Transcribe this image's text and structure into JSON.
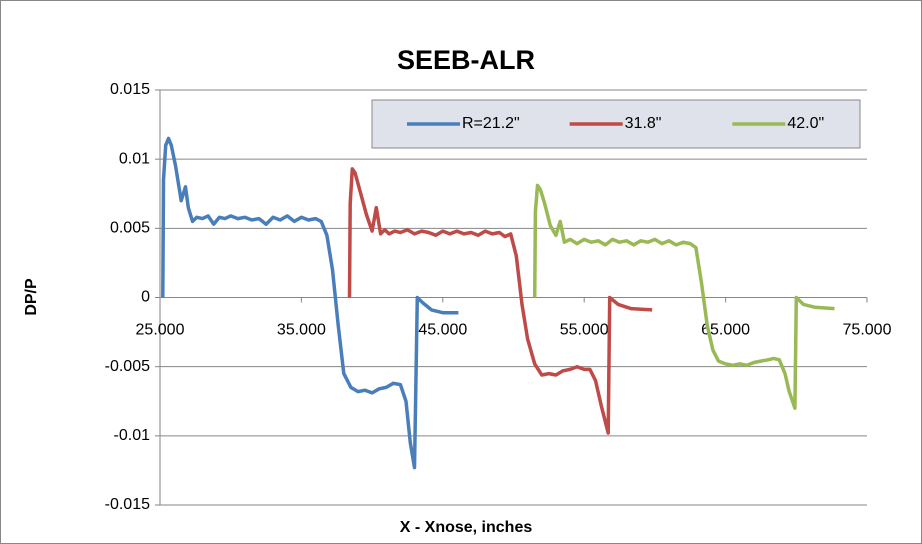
{
  "chart_data": {
    "type": "line",
    "title": "SEEB-ALR",
    "x_label": "X - Xnose, inches",
    "y_label": "DP/P",
    "xlim": [
      25,
      75
    ],
    "xticks": [
      {
        "value": 25,
        "label": "25.000"
      },
      {
        "value": 35,
        "label": "35.000"
      },
      {
        "value": 45,
        "label": "45.000"
      },
      {
        "value": 55,
        "label": "55.000"
      },
      {
        "value": 65,
        "label": "65.000"
      },
      {
        "value": 75,
        "label": "75.000"
      }
    ],
    "ylim": [
      -0.015,
      0.015
    ],
    "yticks": [
      0.015,
      0.01,
      0.005,
      0,
      -0.005,
      -0.01,
      -0.015
    ],
    "grid": true,
    "legend": "top-right",
    "series": [
      {
        "name": "R=21.2\"",
        "color": "#4a7ebb",
        "x": [
          25.2,
          25.25,
          25.4,
          25.6,
          25.8,
          26.1,
          26.5,
          26.8,
          27.0,
          27.3,
          27.6,
          28.0,
          28.4,
          28.8,
          29.2,
          29.6,
          30.0,
          30.5,
          31.0,
          31.5,
          32.0,
          32.5,
          33.0,
          33.5,
          34.0,
          34.5,
          35.0,
          35.5,
          36.0,
          36.4,
          36.8,
          37.2,
          37.6,
          38.0,
          38.5,
          39.0,
          39.5,
          40.0,
          40.5,
          41.0,
          41.5,
          42.0,
          42.4,
          42.7,
          43.0,
          43.2,
          43.6,
          44.2,
          45.0,
          46.1
        ],
        "values": [
          0,
          0.0085,
          0.011,
          0.0115,
          0.011,
          0.0095,
          0.007,
          0.008,
          0.0065,
          0.0055,
          0.0058,
          0.0057,
          0.0059,
          0.0053,
          0.0058,
          0.0057,
          0.0059,
          0.0057,
          0.0058,
          0.0056,
          0.0057,
          0.0053,
          0.0058,
          0.0056,
          0.0059,
          0.0055,
          0.0058,
          0.0056,
          0.0057,
          0.0055,
          0.0045,
          0.002,
          -0.002,
          -0.0055,
          -0.0065,
          -0.0068,
          -0.0067,
          -0.0069,
          -0.0066,
          -0.0065,
          -0.0062,
          -0.0063,
          -0.0075,
          -0.0105,
          -0.0123,
          0,
          -0.0004,
          -0.0009,
          -0.0011,
          -0.0011
        ]
      },
      {
        "name": "31.8\"",
        "color": "#be4b48",
        "x": [
          38.4,
          38.45,
          38.6,
          38.8,
          39.2,
          39.6,
          40.0,
          40.3,
          40.6,
          40.9,
          41.2,
          41.6,
          42.0,
          42.5,
          43,
          43.5,
          44,
          44.5,
          45,
          45.5,
          46,
          46.5,
          47,
          47.5,
          48,
          48.5,
          49,
          49.4,
          49.8,
          50.2,
          50.6,
          51.0,
          51.5,
          52,
          52.5,
          53,
          53.5,
          54,
          54.5,
          55,
          55.4,
          55.8,
          56.2,
          56.7,
          56.8,
          57.4,
          58.3,
          59.8
        ],
        "values": [
          0,
          0.0068,
          0.0093,
          0.009,
          0.0075,
          0.006,
          0.0048,
          0.0065,
          0.0046,
          0.0049,
          0.0046,
          0.0048,
          0.0047,
          0.0049,
          0.0046,
          0.0048,
          0.0047,
          0.0045,
          0.0048,
          0.0046,
          0.0048,
          0.0046,
          0.0047,
          0.0045,
          0.0048,
          0.0046,
          0.0047,
          0.0044,
          0.0046,
          0.003,
          -0.0005,
          -0.003,
          -0.0048,
          -0.0056,
          -0.0055,
          -0.0056,
          -0.0053,
          -0.0052,
          -0.005,
          -0.0052,
          -0.0052,
          -0.006,
          -0.0078,
          -0.0098,
          0,
          -0.0005,
          -0.0008,
          -0.0009
        ]
      },
      {
        "name": "42.0\"",
        "color": "#98b954",
        "x": [
          51.5,
          51.55,
          51.7,
          51.9,
          52.2,
          52.6,
          53.0,
          53.3,
          53.6,
          54.0,
          54.5,
          55,
          55.5,
          56,
          56.5,
          57,
          57.5,
          58,
          58.5,
          59,
          59.5,
          60,
          60.5,
          61,
          61.5,
          62,
          62.5,
          62.9,
          63.3,
          63.7,
          64.1,
          64.5,
          65,
          65.5,
          66,
          66.5,
          67,
          67.5,
          68,
          68.4,
          68.8,
          69.2,
          69.5,
          69.9,
          70.0,
          70.5,
          71.3,
          72.7
        ],
        "values": [
          0,
          0.0062,
          0.0081,
          0.0078,
          0.0068,
          0.0052,
          0.0045,
          0.0055,
          0.004,
          0.0042,
          0.0039,
          0.0042,
          0.004,
          0.0041,
          0.0038,
          0.0042,
          0.004,
          0.0041,
          0.0038,
          0.0041,
          0.004,
          0.0042,
          0.0039,
          0.0041,
          0.0038,
          0.004,
          0.0039,
          0.0036,
          0.001,
          -0.002,
          -0.0038,
          -0.0046,
          -0.0048,
          -0.0049,
          -0.0048,
          -0.0049,
          -0.0047,
          -0.0046,
          -0.0045,
          -0.0044,
          -0.0045,
          -0.0055,
          -0.0068,
          -0.008,
          0,
          -0.0005,
          -0.0007,
          -0.0008
        ]
      }
    ]
  }
}
